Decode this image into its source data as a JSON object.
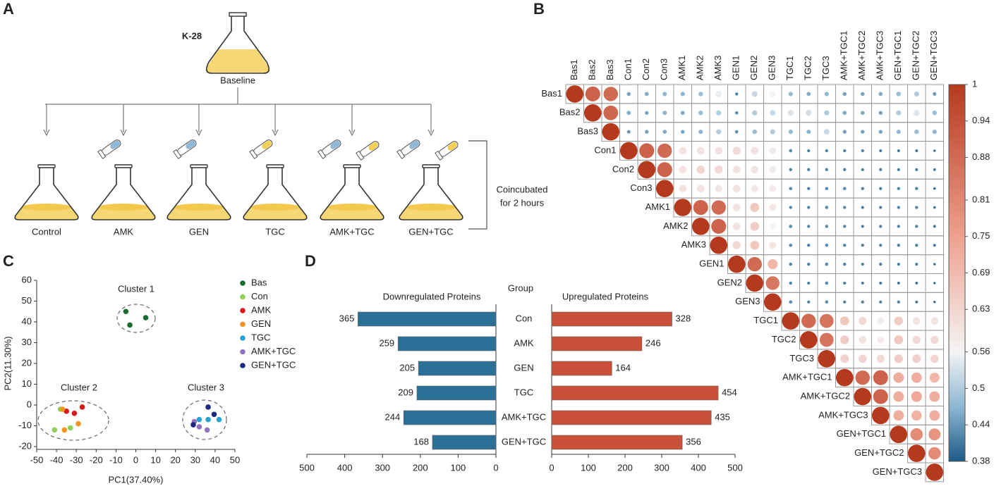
{
  "panel_labels": [
    "A",
    "B",
    "C",
    "D"
  ],
  "diagram": {
    "strain": "K-28",
    "baseline": "Baseline",
    "groups": [
      "Control",
      "AMK",
      "GEN",
      "TGC",
      "AMK+TGC",
      "GEN+TGC"
    ],
    "note": [
      "Coincubated",
      "for 2 hours"
    ]
  },
  "chart_data": [
    {
      "type": "heatmap",
      "labels": [
        "Bas1",
        "Bas2",
        "Bas3",
        "Con1",
        "Con2",
        "Con3",
        "AMK1",
        "AMK2",
        "AMK3",
        "GEN1",
        "GEN2",
        "GEN3",
        "TGC1",
        "TGC2",
        "TGC3",
        "AMK+TGC1",
        "AMK+TGC2",
        "AMK+TGC3",
        "GEN+TGC1",
        "GEN+TGC2",
        "GEN+TGC3"
      ],
      "values": [
        [
          1,
          0.9,
          0.88,
          0.45,
          0.46,
          0.47,
          0.47,
          0.48,
          0.55,
          0.42,
          0.52,
          0.56,
          0.48,
          0.46,
          0.47,
          0.45,
          0.45,
          0.46,
          0.48,
          0.5,
          0.44
        ],
        [
          1,
          0.89,
          0.46,
          0.45,
          0.47,
          0.46,
          0.48,
          0.5,
          0.43,
          0.5,
          0.52,
          0.54,
          0.53,
          0.5,
          0.46,
          0.46,
          0.45,
          0.5,
          0.54,
          0.48
        ],
        [
          1,
          0.44,
          0.45,
          0.46,
          0.45,
          0.47,
          0.5,
          0.43,
          0.48,
          0.5,
          0.48,
          0.47,
          0.52,
          0.45,
          0.45,
          0.45,
          0.47,
          0.48,
          0.47
        ],
        [
          1,
          0.9,
          0.88,
          0.6,
          0.6,
          0.6,
          0.62,
          0.6,
          0.58,
          0.43,
          0.42,
          0.42,
          0.42,
          0.42,
          0.42,
          0.41,
          0.41,
          0.39
        ],
        [
          1,
          0.9,
          0.6,
          0.63,
          0.62,
          0.6,
          0.6,
          0.58,
          0.42,
          0.42,
          0.42,
          0.42,
          0.41,
          0.42,
          0.41,
          0.41,
          0.4
        ],
        [
          1,
          0.6,
          0.6,
          0.59,
          0.6,
          0.59,
          0.58,
          0.43,
          0.42,
          0.43,
          0.43,
          0.42,
          0.42,
          0.42,
          0.42,
          0.4
        ],
        [
          1,
          0.9,
          0.88,
          0.6,
          0.66,
          0.59,
          0.42,
          0.42,
          0.43,
          0.42,
          0.41,
          0.41,
          0.42,
          0.42,
          0.4
        ],
        [
          1,
          0.9,
          0.6,
          0.65,
          0.56,
          0.43,
          0.42,
          0.43,
          0.42,
          0.41,
          0.42,
          0.42,
          0.42,
          0.41
        ],
        [
          1,
          0.62,
          0.66,
          0.59,
          0.43,
          0.42,
          0.43,
          0.42,
          0.42,
          0.42,
          0.42,
          0.42,
          0.41
        ],
        [
          1,
          0.88,
          0.7,
          0.42,
          0.42,
          0.43,
          0.42,
          0.41,
          0.42,
          0.41,
          0.41,
          0.39
        ],
        [
          1,
          0.85,
          0.42,
          0.42,
          0.43,
          0.42,
          0.41,
          0.42,
          0.41,
          0.41,
          0.39
        ],
        [
          1,
          0.43,
          0.42,
          0.43,
          0.42,
          0.42,
          0.42,
          0.42,
          0.41,
          0.39
        ],
        [
          1,
          0.88,
          0.86,
          0.66,
          0.62,
          0.58,
          0.65,
          0.6,
          0.6
        ],
        [
          1,
          0.86,
          0.65,
          0.6,
          0.58,
          0.66,
          0.62,
          0.62
        ],
        [
          1,
          0.64,
          0.63,
          0.62,
          0.65,
          0.64,
          0.63
        ],
        [
          1,
          0.88,
          0.9,
          0.72,
          0.72,
          0.7
        ],
        [
          1,
          0.9,
          0.72,
          0.73,
          0.72
        ],
        [
          1,
          0.72,
          0.71,
          0.72
        ],
        [
          1,
          0.8,
          0.78
        ],
        [
          1,
          0.8
        ],
        [
          1
        ]
      ],
      "zlim": [
        0.38,
        1
      ],
      "zticks": [
        1,
        0.94,
        0.88,
        0.81,
        0.75,
        0.69,
        0.63,
        0.56,
        0.5,
        0.44,
        0.38
      ],
      "color_stops": [
        {
          "value": 0.38,
          "color": "#1c5a87"
        },
        {
          "value": 0.47,
          "color": "#8db6d2"
        },
        {
          "value": 0.56,
          "color": "#f4f4f4"
        },
        {
          "value": 0.75,
          "color": "#eea08e"
        },
        {
          "value": 1,
          "color": "#b53a1d"
        }
      ]
    },
    {
      "type": "scatter",
      "xlabel": "PC1(37.40%)",
      "ylabel": "PC2(11.30%)",
      "xlim": [
        -50,
        50
      ],
      "xticks": [
        -50,
        -40,
        -30,
        -20,
        -10,
        0,
        10,
        20,
        30,
        40,
        50
      ],
      "ylim": [
        -20,
        60
      ],
      "yticks": [
        -20,
        -10,
        0,
        10,
        20,
        30,
        40,
        50,
        60
      ],
      "annotations": [
        "Cluster 1",
        "Cluster 2",
        "Cluster 3"
      ],
      "series": [
        {
          "name": "Bas",
          "color": "#1a6b30",
          "x": [
            -5,
            -3,
            5
          ],
          "y": [
            45,
            38.5,
            42
          ]
        },
        {
          "name": "Con",
          "color": "#8fcf5a",
          "x": [
            -41,
            -33,
            -38
          ],
          "y": [
            -12,
            -11,
            -2
          ]
        },
        {
          "name": "AMK",
          "color": "#d7191c",
          "x": [
            -35,
            -31,
            -27
          ],
          "y": [
            -3,
            -4,
            -1
          ]
        },
        {
          "name": "GEN",
          "color": "#f39422",
          "x": [
            -37,
            -29,
            -36
          ],
          "y": [
            -2,
            -9,
            -12
          ]
        },
        {
          "name": "TGC",
          "color": "#2ca2d1",
          "x": [
            32,
            36.5,
            42
          ],
          "y": [
            -7,
            -7,
            -7
          ]
        },
        {
          "name": "AMK+TGC",
          "color": "#9370c0",
          "x": [
            29.5,
            32,
            36
          ],
          "y": [
            -8,
            -10.5,
            -12
          ]
        },
        {
          "name": "GEN+TGC",
          "color": "#1b2a80",
          "x": [
            36.5,
            39.5,
            29
          ],
          "y": [
            -1,
            -4.5,
            -9.5
          ]
        }
      ]
    },
    {
      "type": "bar",
      "orientation": "butterfly",
      "group_label": "Group",
      "categories": [
        "Con",
        "AMK",
        "GEN",
        "TGC",
        "AMK+TGC",
        "GEN+TGC"
      ],
      "xlim": [
        0,
        500
      ],
      "xticks": [
        0,
        100,
        200,
        300,
        400,
        500
      ],
      "series": [
        {
          "name": "Downregulated Proteins",
          "color": "#2b6e96",
          "label_color": "#1f4e8c",
          "values": [
            365,
            259,
            205,
            209,
            244,
            168
          ]
        },
        {
          "name": "Upregulated Proteins",
          "color": "#c9513a",
          "label_color": "#b03a22",
          "values": [
            328,
            246,
            164,
            454,
            435,
            356
          ]
        }
      ]
    }
  ]
}
